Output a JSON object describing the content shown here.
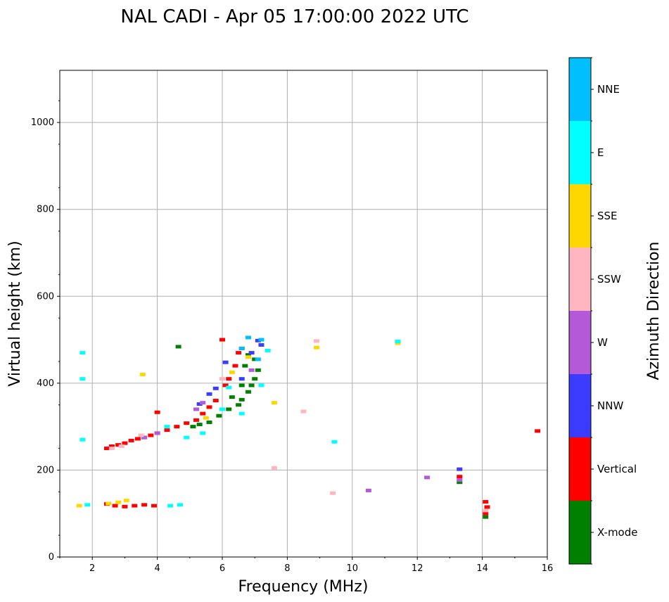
{
  "chart_data": {
    "type": "scatter",
    "title": "NAL CADI - Apr 05 17:00:00 2022 UTC",
    "xlabel": "Frequency (MHz)",
    "ylabel": "Virtual height (km)",
    "xlim": [
      1,
      16
    ],
    "ylim": [
      0,
      1120
    ],
    "xticks": [
      2,
      4,
      6,
      8,
      10,
      12,
      14,
      16
    ],
    "yticks": [
      0,
      200,
      400,
      600,
      800,
      1000
    ],
    "grid": true,
    "colorbar": {
      "label": "Azimuth Direction",
      "categories": [
        {
          "name": "X-mode",
          "color": "#008000"
        },
        {
          "name": "Vertical",
          "color": "#ff0000"
        },
        {
          "name": "NNW",
          "color": "#3c3cff"
        },
        {
          "name": "W",
          "color": "#b45ad8"
        },
        {
          "name": "SSW",
          "color": "#ffb6c1"
        },
        {
          "name": "SSE",
          "color": "#ffd700"
        },
        {
          "name": "E",
          "color": "#00ffff"
        },
        {
          "name": "NNE",
          "color": "#00bfff"
        }
      ]
    },
    "series": [
      {
        "name": "Vertical",
        "points": [
          [
            2.45,
            250
          ],
          [
            2.6,
            255
          ],
          [
            2.8,
            258
          ],
          [
            3.0,
            262
          ],
          [
            3.2,
            268
          ],
          [
            3.4,
            272
          ],
          [
            3.6,
            275
          ],
          [
            3.8,
            280
          ],
          [
            4.0,
            285
          ],
          [
            4.3,
            292
          ],
          [
            4.6,
            300
          ],
          [
            4.9,
            308
          ],
          [
            5.2,
            315
          ],
          [
            5.4,
            330
          ],
          [
            5.6,
            345
          ],
          [
            5.8,
            360
          ],
          [
            6.1,
            395
          ],
          [
            6.2,
            410
          ],
          [
            6.4,
            440
          ],
          [
            6.5,
            470
          ],
          [
            6.6,
            480
          ],
          [
            6.0,
            500
          ],
          [
            4.0,
            333
          ],
          [
            2.45,
            122
          ],
          [
            2.7,
            118
          ],
          [
            3.0,
            116
          ],
          [
            3.3,
            118
          ],
          [
            3.6,
            120
          ],
          [
            3.9,
            118
          ],
          [
            15.7,
            290
          ],
          [
            14.1,
            127
          ],
          [
            14.15,
            115
          ],
          [
            14.1,
            100
          ],
          [
            13.3,
            185
          ]
        ]
      },
      {
        "name": "X-mode",
        "points": [
          [
            5.1,
            300
          ],
          [
            5.3,
            305
          ],
          [
            5.6,
            310
          ],
          [
            5.9,
            325
          ],
          [
            6.2,
            340
          ],
          [
            6.5,
            350
          ],
          [
            6.6,
            362
          ],
          [
            6.8,
            380
          ],
          [
            6.9,
            395
          ],
          [
            7.0,
            410
          ],
          [
            6.6,
            395
          ],
          [
            7.1,
            430
          ],
          [
            7.0,
            455
          ],
          [
            6.8,
            465
          ],
          [
            6.3,
            368
          ],
          [
            6.7,
            440
          ],
          [
            4.65,
            484
          ],
          [
            13.3,
            172
          ],
          [
            14.1,
            92
          ]
        ]
      },
      {
        "name": "NNW",
        "points": [
          [
            5.3,
            352
          ],
          [
            5.6,
            375
          ],
          [
            5.8,
            388
          ],
          [
            6.1,
            448
          ],
          [
            6.9,
            470
          ],
          [
            7.2,
            488
          ],
          [
            7.1,
            498
          ],
          [
            6.6,
            410
          ],
          [
            13.3,
            202
          ]
        ]
      },
      {
        "name": "W",
        "points": [
          [
            3.6,
            275
          ],
          [
            4.0,
            285
          ],
          [
            5.2,
            340
          ],
          [
            5.4,
            355
          ],
          [
            6.9,
            430
          ],
          [
            10.5,
            153
          ],
          [
            12.3,
            183
          ],
          [
            13.3,
            177
          ]
        ]
      },
      {
        "name": "SSW",
        "points": [
          [
            2.6,
            250
          ],
          [
            2.9,
            255
          ],
          [
            3.5,
            280
          ],
          [
            6.0,
            410
          ],
          [
            7.6,
            205
          ],
          [
            8.5,
            335
          ],
          [
            8.9,
            497
          ],
          [
            9.4,
            147
          ],
          [
            14.1,
            107
          ]
        ]
      },
      {
        "name": "SSE",
        "points": [
          [
            3.55,
            420
          ],
          [
            5.5,
            320
          ],
          [
            6.3,
            425
          ],
          [
            6.8,
            460
          ],
          [
            7.6,
            355
          ],
          [
            8.9,
            482
          ],
          [
            11.4,
            492
          ],
          [
            1.6,
            118
          ],
          [
            2.8,
            126
          ],
          [
            3.05,
            130
          ],
          [
            2.5,
            123
          ]
        ]
      },
      {
        "name": "E",
        "points": [
          [
            4.3,
            300
          ],
          [
            4.9,
            275
          ],
          [
            5.4,
            285
          ],
          [
            6.0,
            340
          ],
          [
            6.2,
            390
          ],
          [
            6.6,
            330
          ],
          [
            7.2,
            395
          ],
          [
            7.4,
            475
          ],
          [
            9.45,
            265
          ],
          [
            11.4,
            496
          ],
          [
            4.4,
            118
          ],
          [
            4.7,
            120
          ],
          [
            1.85,
            120
          ],
          [
            1.7,
            470
          ],
          [
            1.7,
            410
          ],
          [
            1.7,
            270
          ]
        ]
      },
      {
        "name": "NNE",
        "points": [
          [
            6.8,
            505
          ],
          [
            7.2,
            500
          ],
          [
            7.1,
            455
          ],
          [
            6.6,
            480
          ]
        ]
      }
    ]
  }
}
